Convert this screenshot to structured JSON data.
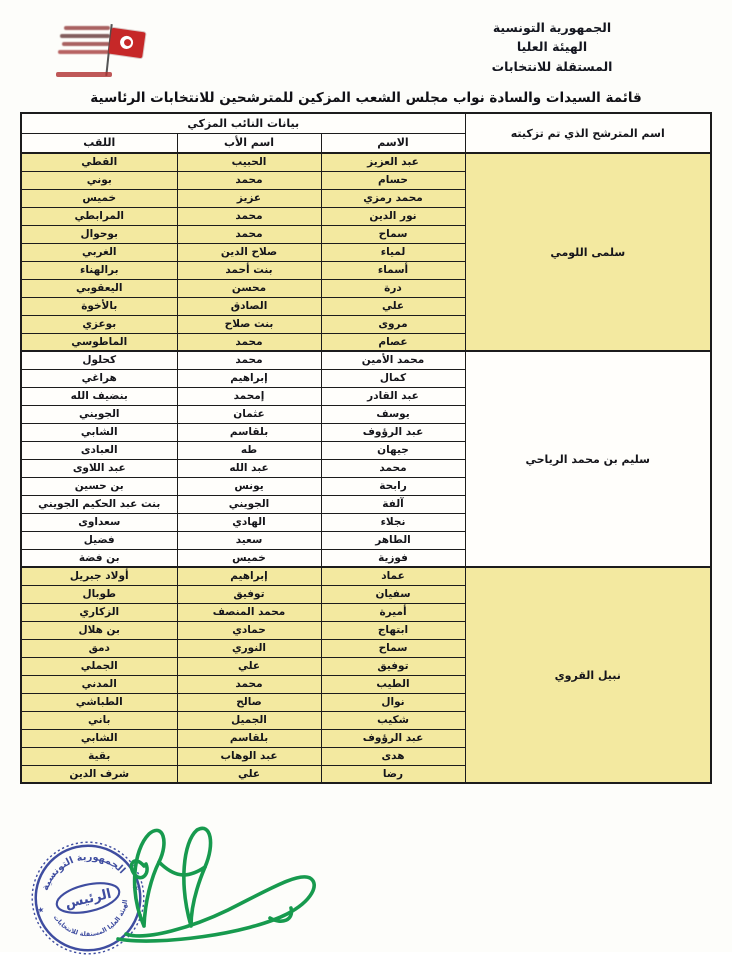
{
  "page": {
    "title": "قائمة السيدات والسادة نواب مجلس الشعب المزكين للمترشحين للانتخابات الرئاسية"
  },
  "letterhead": {
    "org_lines": [
      "الجمهورية التونسية",
      "الهيئة العليا",
      "المستقلة للانتخابات"
    ]
  },
  "table": {
    "group_header": "بيانات النائب المزكي",
    "candidate_header": "اسم المترشح الذي تم تزكيته",
    "columns": [
      "الاسم",
      "اسم الأب",
      "اللقب"
    ],
    "groups": [
      {
        "candidate": "سلمى اللومي",
        "highlight": true,
        "rows": [
          [
            "عبد العزيز",
            "الحبيب",
            "القطي"
          ],
          [
            "حسام",
            "محمد",
            "بوني"
          ],
          [
            "محمد رمزي",
            "عزيز",
            "خميس"
          ],
          [
            "نور الدين",
            "محمد",
            "المرابطي"
          ],
          [
            "سماح",
            "محمد",
            "بوحوال"
          ],
          [
            "لمياء",
            "صلاح الدين",
            "الغربي"
          ],
          [
            "أسماء",
            "بنت أحمد",
            "برالهناء"
          ],
          [
            "درة",
            "محسن",
            "اليعقوبي"
          ],
          [
            "علي",
            "الصادق",
            "بالأخوة"
          ],
          [
            "مروى",
            "بنت صلاح",
            "بوعزي"
          ],
          [
            "عصام",
            "محمد",
            "الماطوسي"
          ]
        ]
      },
      {
        "candidate": "سليم بن محمد الرياحي",
        "highlight": false,
        "rows": [
          [
            "محمد الأمين",
            "محمد",
            "كحلول"
          ],
          [
            "كمال",
            "إبراهيم",
            "هراغي"
          ],
          [
            "عبد القادر",
            "إمحمد",
            "بنضيف الله"
          ],
          [
            "يوسف",
            "عثمان",
            "الجويني"
          ],
          [
            "عبد الرؤوف",
            "بلقاسم",
            "الشابي"
          ],
          [
            "جيهان",
            "طه",
            "العبادى"
          ],
          [
            "محمد",
            "عبد الله",
            "عبد اللاوى"
          ],
          [
            "رابحة",
            "يونس",
            "بن حسين"
          ],
          [
            "آلفة",
            "الجويني",
            "بنت عبد الحكيم الجويني"
          ],
          [
            "نجلاء",
            "الهادي",
            "سعداوى"
          ],
          [
            "الطاهر",
            "سعيد",
            "فضيل"
          ],
          [
            "فوزية",
            "خميس",
            "بن فضة"
          ]
        ]
      },
      {
        "candidate": "نبيل القروي",
        "highlight": true,
        "rows": [
          [
            "عماد",
            "إبراهيم",
            "أولاد جبريل"
          ],
          [
            "سفيان",
            "توفيق",
            "طوبال"
          ],
          [
            "أميرة",
            "محمد المنصف",
            "الزكاري"
          ],
          [
            "ابتهاج",
            "حمادي",
            "بن هلال"
          ],
          [
            "سماح",
            "النوري",
            "دمق"
          ],
          [
            "توفيق",
            "علي",
            "الجملي"
          ],
          [
            "الطيب",
            "محمد",
            "المدني"
          ],
          [
            "نوال",
            "صالح",
            "الطباشي"
          ],
          [
            "شكيب",
            "الجميل",
            "باني"
          ],
          [
            "عبد الرؤوف",
            "بلقاسم",
            "الشابي"
          ],
          [
            "هدى",
            "عبد الوهاب",
            "بقية"
          ],
          [
            "رضا",
            "علي",
            "شرف الدين"
          ]
        ]
      }
    ]
  },
  "stamp": {
    "top_arc": "الجمهورية التونسية",
    "bottom_arc": "الهيئة العليا المستقلة للانتخابات",
    "center": "الرئيس",
    "star": "★",
    "color": "#31409a"
  },
  "signature": {
    "color": "#179a4e"
  },
  "colors": {
    "highlight": "#f3e9a0",
    "border": "#1c1c1c"
  }
}
